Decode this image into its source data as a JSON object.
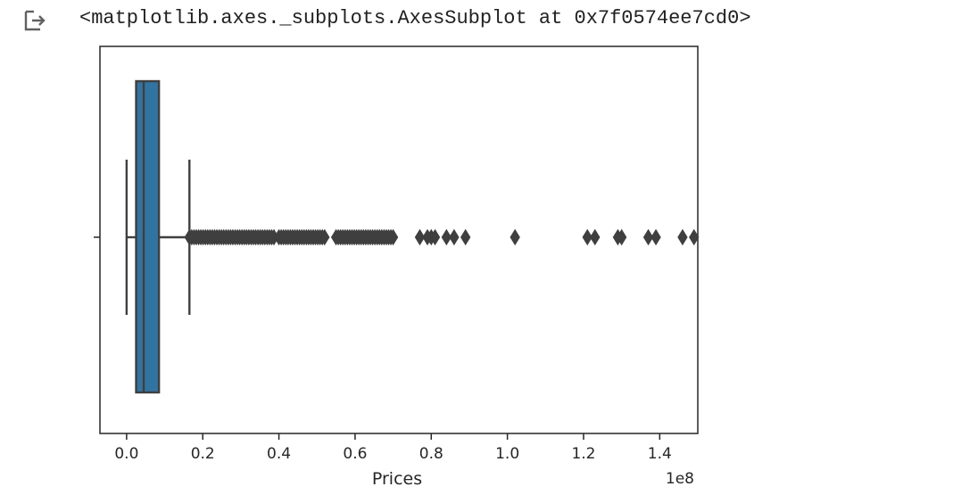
{
  "output": {
    "icon": "output-arrow-icon",
    "repr": "<matplotlib.axes._subplots.AxesSubplot at 0x7f0574ee7cd0>"
  },
  "chart_data": {
    "type": "box",
    "orientation": "horizontal",
    "xlabel": "Prices",
    "offset_label": "1e8",
    "xlim": [
      -0.07,
      1.5
    ],
    "xticks": [
      0.0,
      0.2,
      0.4,
      0.6,
      0.8,
      1.0,
      1.2,
      1.4
    ],
    "xtick_labels": [
      "0.0",
      "0.2",
      "0.4",
      "0.6",
      "0.8",
      "1.0",
      "1.2",
      "1.4"
    ],
    "box_color": "#3274a1",
    "line_color": "#3f3f3f",
    "box": {
      "whisker_low": 0.0,
      "q1": 0.025,
      "median": 0.045,
      "q3": 0.085,
      "whisker_high": 0.165
    },
    "outliers_dense_ranges": [
      [
        0.165,
        0.39
      ],
      [
        0.4,
        0.52
      ],
      [
        0.55,
        0.7
      ]
    ],
    "outliers": [
      0.77,
      0.79,
      0.8,
      0.81,
      0.84,
      0.86,
      0.89,
      1.02,
      1.21,
      1.23,
      1.29,
      1.3,
      1.37,
      1.39,
      1.46,
      1.49
    ]
  }
}
